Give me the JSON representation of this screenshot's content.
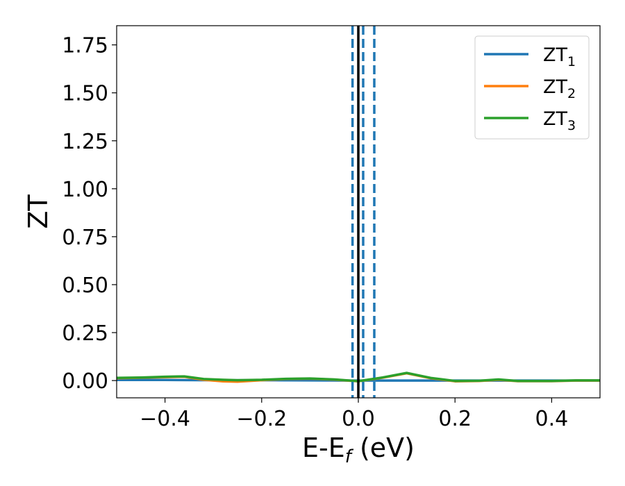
{
  "chart_data": {
    "type": "line",
    "xlabel": "E-E",
    "xlabel_subscript": "f",
    "xlabel_unit": " (eV)",
    "ylabel": "ZT",
    "xlim": [
      -0.5,
      0.5
    ],
    "ylim": [
      -0.09,
      1.85
    ],
    "xticks": [
      -0.4,
      -0.2,
      0.0,
      0.2,
      0.4
    ],
    "xtick_labels": [
      "−0.4",
      "−0.2",
      "0.0",
      "0.2",
      "0.4"
    ],
    "yticks": [
      0.0,
      0.25,
      0.5,
      0.75,
      1.0,
      1.25,
      1.5,
      1.75
    ],
    "ytick_labels": [
      "0.00",
      "0.25",
      "0.50",
      "0.75",
      "1.00",
      "1.25",
      "1.50",
      "1.75"
    ],
    "grid": false,
    "legend_position": "top-right",
    "series": [
      {
        "name": "ZT",
        "subscript": "1",
        "color": "#1f77b4",
        "x": [
          -0.5,
          -0.4,
          -0.3,
          -0.2,
          -0.1,
          0.0,
          0.1,
          0.2,
          0.3,
          0.4,
          0.5
        ],
        "y": [
          0.003,
          0.003,
          0.002,
          0.002,
          0.001,
          0.0,
          0.0,
          0.0,
          0.0,
          0.0,
          0.0
        ]
      },
      {
        "name": "ZT",
        "subscript": "2",
        "color": "#ff7f0e",
        "x": [
          -0.5,
          -0.45,
          -0.4,
          -0.36,
          -0.32,
          -0.28,
          -0.25,
          -0.2,
          -0.15,
          -0.1,
          -0.05,
          0.0,
          0.05,
          0.1,
          0.15,
          0.2,
          0.25,
          0.29,
          0.33,
          0.4,
          0.45,
          0.5
        ],
        "y": [
          0.012,
          0.015,
          0.018,
          0.02,
          0.004,
          -0.004,
          -0.006,
          0.002,
          0.008,
          0.01,
          0.005,
          -0.004,
          0.015,
          0.038,
          0.012,
          -0.004,
          -0.002,
          0.004,
          -0.003,
          -0.003,
          0.0,
          0.0
        ]
      },
      {
        "name": "ZT",
        "subscript": "3",
        "color": "#2ca02c",
        "x": [
          -0.5,
          -0.45,
          -0.4,
          -0.36,
          -0.32,
          -0.28,
          -0.25,
          -0.2,
          -0.15,
          -0.1,
          -0.05,
          0.0,
          0.05,
          0.1,
          0.15,
          0.2,
          0.25,
          0.29,
          0.33,
          0.4,
          0.45,
          0.5
        ],
        "y": [
          0.014,
          0.016,
          0.02,
          0.022,
          0.008,
          0.004,
          0.002,
          0.004,
          0.009,
          0.011,
          0.006,
          -0.003,
          0.016,
          0.04,
          0.014,
          -0.002,
          -0.001,
          0.006,
          -0.002,
          -0.002,
          0.001,
          0.001
        ]
      }
    ],
    "vertical_lines": [
      {
        "x": -0.012,
        "style": "dashed",
        "color": "#1f77b4"
      },
      {
        "x": 0.0,
        "style": "solid",
        "color": "#000000"
      },
      {
        "x": 0.01,
        "style": "dashed",
        "color": "#1f77b4"
      },
      {
        "x": 0.033,
        "style": "dashed",
        "color": "#1f77b4"
      }
    ]
  }
}
